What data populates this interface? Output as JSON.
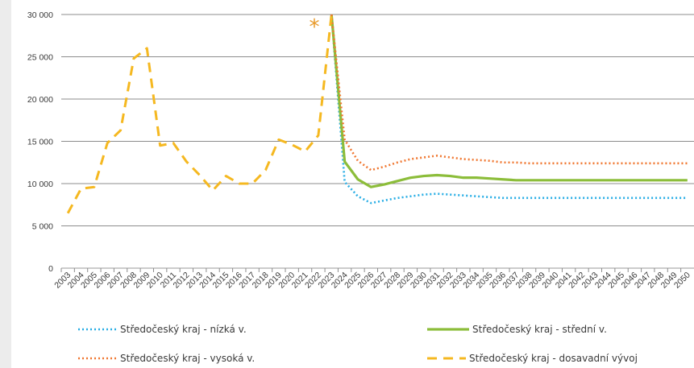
{
  "chart_data": {
    "type": "line",
    "title": "",
    "xlabel": "",
    "ylabel": "",
    "ylim": [
      0,
      30000
    ],
    "yticks": [
      0,
      5000,
      10000,
      15000,
      20000,
      25000,
      30000
    ],
    "ytick_labels": [
      "0",
      "5 000",
      "10 000",
      "15 000",
      "20 000",
      "25 000",
      "30 000"
    ],
    "categories": [
      "2003",
      "2004",
      "2005",
      "2006",
      "2007",
      "2008",
      "2009",
      "2010",
      "2011",
      "2012",
      "2013",
      "2014",
      "2015",
      "2016",
      "2017",
      "2018",
      "2019",
      "2020",
      "2021",
      "2022",
      "2023",
      "2024",
      "2025",
      "2026",
      "2027",
      "2028",
      "2029",
      "2030",
      "2031",
      "2032",
      "2033",
      "2034",
      "2035",
      "2036",
      "2037",
      "2038",
      "2039",
      "2040",
      "2041",
      "2042",
      "2043",
      "2044",
      "2045",
      "2046",
      "2047",
      "2048",
      "2049",
      "2050"
    ],
    "grid": "horizontal",
    "legend_position": "bottom",
    "annotation": "*",
    "series": [
      {
        "name": "Středočeský kraj - nízká v.",
        "color": "#29aee5",
        "style": "dotted",
        "x": [
          "2023",
          "2024",
          "2025",
          "2026",
          "2027",
          "2028",
          "2029",
          "2030",
          "2031",
          "2032",
          "2033",
          "2034",
          "2035",
          "2036",
          "2037",
          "2038",
          "2039",
          "2040",
          "2041",
          "2042",
          "2043",
          "2044",
          "2045",
          "2046",
          "2047",
          "2048",
          "2049",
          "2050"
        ],
        "values": [
          30000,
          10200,
          8500,
          7700,
          8000,
          8300,
          8500,
          8700,
          8800,
          8700,
          8600,
          8500,
          8400,
          8300,
          8300,
          8300,
          8300,
          8300,
          8300,
          8300,
          8300,
          8300,
          8300,
          8300,
          8300,
          8300,
          8300,
          8300
        ]
      },
      {
        "name": "Středočeský kraj - střední v.",
        "color": "#8cbd3a",
        "style": "solid",
        "x": [
          "2023",
          "2024",
          "2025",
          "2026",
          "2027",
          "2028",
          "2029",
          "2030",
          "2031",
          "2032",
          "2033",
          "2034",
          "2035",
          "2036",
          "2037",
          "2038",
          "2039",
          "2040",
          "2041",
          "2042",
          "2043",
          "2044",
          "2045",
          "2046",
          "2047",
          "2048",
          "2049",
          "2050"
        ],
        "values": [
          30000,
          12600,
          10500,
          9600,
          9900,
          10300,
          10700,
          10900,
          11000,
          10900,
          10700,
          10700,
          10600,
          10500,
          10400,
          10400,
          10400,
          10400,
          10400,
          10400,
          10400,
          10400,
          10400,
          10400,
          10400,
          10400,
          10400,
          10400
        ]
      },
      {
        "name": "Středočeský kraj - vysoká v.",
        "color": "#f07832",
        "style": "dotted",
        "x": [
          "2023",
          "2024",
          "2025",
          "2026",
          "2027",
          "2028",
          "2029",
          "2030",
          "2031",
          "2032",
          "2033",
          "2034",
          "2035",
          "2036",
          "2037",
          "2038",
          "2039",
          "2040",
          "2041",
          "2042",
          "2043",
          "2044",
          "2045",
          "2046",
          "2047",
          "2048",
          "2049",
          "2050"
        ],
        "values": [
          30000,
          15200,
          12700,
          11600,
          12000,
          12500,
          12900,
          13100,
          13300,
          13100,
          12900,
          12800,
          12700,
          12500,
          12500,
          12400,
          12400,
          12400,
          12400,
          12400,
          12400,
          12400,
          12400,
          12400,
          12400,
          12400,
          12400,
          12400
        ]
      },
      {
        "name": "Středočeský kraj - dosavadní vývoj",
        "color": "#f5b820",
        "style": "dashed",
        "x": [
          "2003",
          "2004",
          "2005",
          "2006",
          "2007",
          "2008",
          "2009",
          "2010",
          "2011",
          "2012",
          "2013",
          "2014",
          "2015",
          "2016",
          "2017",
          "2018",
          "2019",
          "2020",
          "2021",
          "2022",
          "2023"
        ],
        "values": [
          6500,
          9400,
          9600,
          14800,
          16300,
          24800,
          26000,
          14500,
          14800,
          12600,
          11000,
          9200,
          10900,
          10000,
          10000,
          11600,
          15200,
          14600,
          13800,
          15700,
          30000
        ]
      }
    ]
  }
}
